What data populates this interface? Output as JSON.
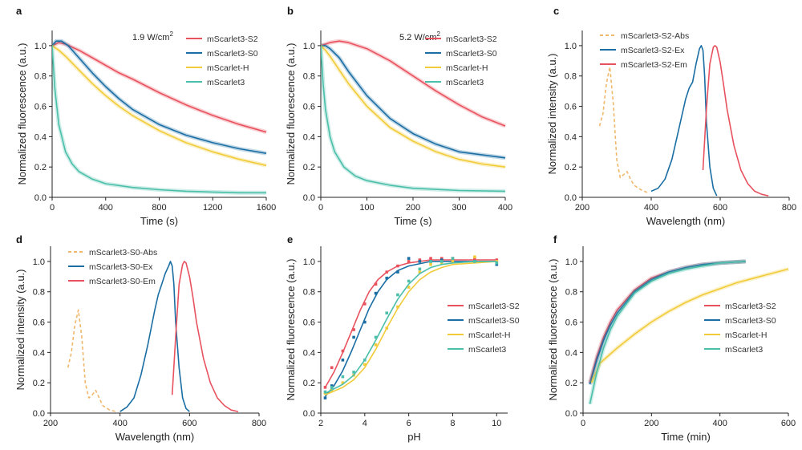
{
  "colors": {
    "s2": "#e8525f",
    "s0": "#1b6ea4",
    "h": "#f2cb3a",
    "m3": "#4bbfaa",
    "abs": "#f0b86c"
  },
  "chart_data": [
    {
      "panel": "a",
      "type": "line",
      "annotation": "1.9 W/cm",
      "annotation_sup": "2",
      "xlabel": "Time (s)",
      "ylabel": "Normalized fluorescence (a.u.)",
      "xlim": [
        0,
        1600
      ],
      "ylim": [
        0,
        1.1
      ],
      "xticks": [
        "0",
        "400",
        "800",
        "1200",
        "1600"
      ],
      "yticks": [
        "0.0",
        "0.2",
        "0.4",
        "0.6",
        "0.8",
        "1.0"
      ],
      "legend_position": "top-right",
      "series": [
        {
          "name": "mScarlet3-S2",
          "color_key": "s2",
          "x": [
            0,
            50,
            100,
            200,
            300,
            400,
            500,
            600,
            800,
            1000,
            1200,
            1400,
            1600
          ],
          "y": [
            1.0,
            1.02,
            1.01,
            0.97,
            0.92,
            0.87,
            0.82,
            0.78,
            0.69,
            0.61,
            0.54,
            0.48,
            0.43
          ]
        },
        {
          "name": "mScarlet3-S0",
          "color_key": "s0",
          "x": [
            0,
            30,
            70,
            120,
            200,
            300,
            400,
            500,
            600,
            800,
            1000,
            1200,
            1400,
            1600
          ],
          "y": [
            1.0,
            1.03,
            1.03,
            1.0,
            0.92,
            0.82,
            0.73,
            0.65,
            0.58,
            0.48,
            0.41,
            0.36,
            0.32,
            0.29
          ]
        },
        {
          "name": "mScarlet-H",
          "color_key": "h",
          "x": [
            0,
            50,
            100,
            200,
            300,
            400,
            500,
            600,
            800,
            1000,
            1200,
            1400,
            1600
          ],
          "y": [
            1.0,
            0.97,
            0.93,
            0.84,
            0.75,
            0.67,
            0.6,
            0.54,
            0.44,
            0.36,
            0.3,
            0.25,
            0.21
          ]
        },
        {
          "name": "mScarlet3",
          "color_key": "m3",
          "x": [
            0,
            20,
            50,
            100,
            150,
            200,
            300,
            400,
            600,
            800,
            1000,
            1200,
            1400,
            1600
          ],
          "y": [
            1.0,
            0.72,
            0.48,
            0.3,
            0.22,
            0.17,
            0.12,
            0.09,
            0.065,
            0.05,
            0.04,
            0.035,
            0.03,
            0.03
          ]
        }
      ]
    },
    {
      "panel": "b",
      "type": "line",
      "annotation": "5.2 W/cm",
      "annotation_sup": "2",
      "xlabel": "Time (s)",
      "ylabel": "Normalized fluorescence (a.u.)",
      "xlim": [
        0,
        400
      ],
      "ylim": [
        0,
        1.1
      ],
      "xticks": [
        "0",
        "100",
        "200",
        "300",
        "400"
      ],
      "yticks": [
        "0.0",
        "0.2",
        "0.4",
        "0.6",
        "0.8",
        "1.0"
      ],
      "legend_position": "top-right",
      "series": [
        {
          "name": "mScarlet3-S2",
          "color_key": "s2",
          "x": [
            0,
            20,
            40,
            60,
            100,
            150,
            200,
            250,
            300,
            350,
            400
          ],
          "y": [
            1.0,
            1.02,
            1.03,
            1.02,
            0.98,
            0.9,
            0.8,
            0.7,
            0.61,
            0.53,
            0.47
          ]
        },
        {
          "name": "mScarlet3-S0",
          "color_key": "s0",
          "x": [
            0,
            10,
            20,
            40,
            60,
            100,
            150,
            200,
            250,
            300,
            350,
            400
          ],
          "y": [
            1.0,
            1.0,
            0.98,
            0.92,
            0.83,
            0.67,
            0.52,
            0.42,
            0.35,
            0.3,
            0.28,
            0.26
          ]
        },
        {
          "name": "mScarlet-H",
          "color_key": "h",
          "x": [
            0,
            10,
            20,
            40,
            60,
            100,
            150,
            200,
            250,
            300,
            350,
            400
          ],
          "y": [
            1.0,
            0.97,
            0.93,
            0.84,
            0.75,
            0.6,
            0.46,
            0.37,
            0.3,
            0.25,
            0.22,
            0.2
          ]
        },
        {
          "name": "mScarlet3",
          "color_key": "m3",
          "x": [
            0,
            5,
            10,
            20,
            30,
            50,
            75,
            100,
            150,
            200,
            300,
            400
          ],
          "y": [
            1.0,
            0.75,
            0.58,
            0.4,
            0.3,
            0.2,
            0.14,
            0.11,
            0.08,
            0.06,
            0.045,
            0.04
          ]
        }
      ]
    },
    {
      "panel": "c",
      "type": "line",
      "xlabel": "Wavelength (nm)",
      "ylabel": "Normalized intensity (a.u.)",
      "xlim": [
        200,
        800
      ],
      "ylim": [
        0,
        1.1
      ],
      "xticks": [
        "200",
        "400",
        "600",
        "800"
      ],
      "yticks": [
        "0.0",
        "0.2",
        "0.4",
        "0.6",
        "0.8",
        "1.0"
      ],
      "legend_position": "top-left",
      "series": [
        {
          "name": "mScarlet3-S2-Abs",
          "color_key": "abs",
          "dashed": true,
          "x": [
            250,
            260,
            270,
            280,
            290,
            300,
            310,
            320,
            330,
            340,
            350,
            370,
            390
          ],
          "y": [
            0.47,
            0.55,
            0.75,
            0.86,
            0.62,
            0.25,
            0.13,
            0.15,
            0.17,
            0.12,
            0.08,
            0.05,
            0.03
          ]
        },
        {
          "name": "mScarlet3-S2-Ex",
          "color_key": "s0",
          "x": [
            400,
            420,
            440,
            460,
            480,
            500,
            510,
            520,
            530,
            540,
            545,
            550,
            555,
            560,
            570,
            580,
            590
          ],
          "y": [
            0.04,
            0.06,
            0.12,
            0.25,
            0.45,
            0.65,
            0.72,
            0.76,
            0.88,
            0.98,
            1.0,
            0.97,
            0.8,
            0.5,
            0.2,
            0.06,
            0.01
          ]
        },
        {
          "name": "mScarlet3-S2-Em",
          "color_key": "s2",
          "x": [
            550,
            560,
            570,
            580,
            585,
            590,
            600,
            610,
            620,
            640,
            660,
            680,
            700,
            720,
            740
          ],
          "y": [
            0.18,
            0.58,
            0.88,
            0.99,
            1.0,
            0.99,
            0.89,
            0.74,
            0.58,
            0.34,
            0.18,
            0.09,
            0.04,
            0.02,
            0.01
          ]
        }
      ]
    },
    {
      "panel": "d",
      "type": "line",
      "xlabel": "Wavelength (nm)",
      "ylabel": "Normalized intensity (a.u.)",
      "xlim": [
        200,
        800
      ],
      "ylim": [
        0,
        1.1
      ],
      "xticks": [
        "200",
        "400",
        "600",
        "800"
      ],
      "yticks": [
        "0.0",
        "0.2",
        "0.4",
        "0.6",
        "0.8",
        "1.0"
      ],
      "legend_position": "top-left",
      "series": [
        {
          "name": "mScarlet3-S0-Abs",
          "color_key": "abs",
          "dashed": true,
          "x": [
            250,
            260,
            270,
            280,
            290,
            300,
            310,
            320,
            330,
            340,
            350,
            370,
            390
          ],
          "y": [
            0.3,
            0.4,
            0.58,
            0.68,
            0.5,
            0.2,
            0.1,
            0.12,
            0.15,
            0.1,
            0.05,
            0.02,
            0.01
          ]
        },
        {
          "name": "mScarlet3-S0-Ex",
          "color_key": "s0",
          "x": [
            400,
            420,
            440,
            460,
            480,
            500,
            510,
            520,
            530,
            540,
            545,
            550,
            555,
            560,
            570,
            580,
            590,
            600
          ],
          "y": [
            0.01,
            0.04,
            0.1,
            0.25,
            0.45,
            0.68,
            0.78,
            0.85,
            0.92,
            0.97,
            1.0,
            0.97,
            0.85,
            0.6,
            0.3,
            0.1,
            0.03,
            0.01
          ]
        },
        {
          "name": "mScarlet3-S0-Em",
          "color_key": "s2",
          "x": [
            550,
            560,
            570,
            580,
            585,
            590,
            600,
            610,
            620,
            640,
            660,
            680,
            700,
            720,
            740
          ],
          "y": [
            0.12,
            0.5,
            0.85,
            0.98,
            1.0,
            0.99,
            0.9,
            0.76,
            0.6,
            0.36,
            0.2,
            0.1,
            0.05,
            0.02,
            0.01
          ]
        }
      ]
    },
    {
      "panel": "e",
      "type": "scatter",
      "xlabel": "pH",
      "ylabel": "Normalized fluorescence (a.u.)",
      "xlim": [
        2,
        10.5
      ],
      "ylim": [
        0,
        1.1
      ],
      "xticks": [
        "2",
        "4",
        "6",
        "8",
        "10"
      ],
      "yticks": [
        "0.0",
        "0.2",
        "0.4",
        "0.6",
        "0.8",
        "1.0"
      ],
      "legend_position": "center-right",
      "series": [
        {
          "name": "mScarlet3-S2",
          "color_key": "s2",
          "pts_x": [
            2.2,
            2.5,
            3,
            3.5,
            4,
            4.5,
            5,
            5.5,
            6,
            6.5,
            7,
            7.5,
            8,
            9,
            10
          ],
          "pts_y": [
            0.17,
            0.3,
            0.41,
            0.55,
            0.72,
            0.85,
            0.93,
            0.97,
            1.0,
            1.01,
            1.02,
            1.02,
            1.02,
            1.02,
            1.01
          ],
          "fit_x": [
            2.2,
            2.6,
            3.0,
            3.4,
            3.8,
            4.2,
            4.6,
            5.0,
            5.5,
            6.0,
            7.0,
            8.0,
            9.0,
            10.0
          ],
          "fit_y": [
            0.17,
            0.27,
            0.4,
            0.54,
            0.68,
            0.8,
            0.88,
            0.93,
            0.97,
            0.99,
            1.01,
            1.01,
            1.01,
            1.01
          ]
        },
        {
          "name": "mScarlet3-S0",
          "color_key": "s0",
          "pts_x": [
            2.2,
            2.5,
            3,
            3.5,
            4,
            4.5,
            5,
            5.5,
            6,
            6.5,
            7,
            7.5,
            8,
            9,
            10
          ],
          "pts_y": [
            0.1,
            0.18,
            0.35,
            0.5,
            0.6,
            0.79,
            0.89,
            0.93,
            1.02,
            1.0,
            1.0,
            1.01,
            1.0,
            1.0,
            0.98
          ],
          "fit_x": [
            2.2,
            2.6,
            3.0,
            3.4,
            3.8,
            4.2,
            4.6,
            5.0,
            5.5,
            6.0,
            7.0,
            8.0,
            9.0,
            10.0
          ],
          "fit_y": [
            0.11,
            0.18,
            0.28,
            0.41,
            0.55,
            0.69,
            0.8,
            0.88,
            0.94,
            0.97,
            1.0,
            1.0,
            1.0,
            1.0
          ]
        },
        {
          "name": "mScarlet-H",
          "color_key": "h",
          "pts_x": [
            2.2,
            2.5,
            3,
            3.5,
            4,
            4.5,
            5,
            5.5,
            6,
            6.5,
            7,
            7.5,
            8,
            9,
            10
          ],
          "pts_y": [
            0.13,
            0.15,
            0.2,
            0.25,
            0.32,
            0.45,
            0.56,
            0.7,
            0.83,
            0.93,
            0.98,
            0.99,
            1.0,
            1.03,
            1.0
          ],
          "fit_x": [
            2.2,
            3.0,
            3.5,
            4.0,
            4.5,
            5.0,
            5.5,
            6.0,
            6.5,
            7.0,
            7.5,
            8.0,
            9.0,
            10.0
          ],
          "fit_y": [
            0.12,
            0.17,
            0.22,
            0.3,
            0.42,
            0.56,
            0.69,
            0.8,
            0.88,
            0.93,
            0.96,
            0.98,
            0.99,
            1.0
          ]
        },
        {
          "name": "mScarlet3",
          "color_key": "m3",
          "pts_x": [
            2.2,
            2.5,
            3,
            3.5,
            4,
            4.5,
            5,
            5.5,
            6,
            6.5,
            7,
            7.5,
            8,
            9,
            10
          ],
          "pts_y": [
            0.14,
            0.17,
            0.24,
            0.27,
            0.35,
            0.5,
            0.66,
            0.78,
            0.87,
            0.95,
            1.0,
            1.0,
            1.02,
            1.0,
            0.99
          ],
          "fit_x": [
            2.2,
            3.0,
            3.5,
            4.0,
            4.5,
            5.0,
            5.5,
            6.0,
            6.5,
            7.0,
            7.5,
            8.0,
            9.0,
            10.0
          ],
          "fit_y": [
            0.13,
            0.19,
            0.25,
            0.35,
            0.48,
            0.62,
            0.75,
            0.85,
            0.92,
            0.96,
            0.98,
            0.99,
            1.0,
            1.0
          ]
        }
      ]
    },
    {
      "panel": "f",
      "type": "line",
      "xlabel": "Time (min)",
      "ylabel": "Normalized fluorescence (a.u.)",
      "xlim": [
        0,
        600
      ],
      "ylim": [
        0,
        1.1
      ],
      "xticks": [
        "0",
        "200",
        "400",
        "600"
      ],
      "yticks": [
        "0.0",
        "0.2",
        "0.4",
        "0.6",
        "0.8",
        "1.0"
      ],
      "legend_position": "center-right",
      "series": [
        {
          "name": "mScarlet3-S2",
          "color_key": "s2",
          "x": [
            20,
            40,
            60,
            80,
            100,
            150,
            200,
            250,
            300,
            350,
            400,
            475
          ],
          "y": [
            0.2,
            0.37,
            0.5,
            0.6,
            0.68,
            0.81,
            0.89,
            0.93,
            0.96,
            0.98,
            0.99,
            1.0
          ]
        },
        {
          "name": "mScarlet3-S0",
          "color_key": "s0",
          "x": [
            20,
            40,
            60,
            80,
            100,
            150,
            200,
            250,
            300,
            350,
            400,
            475
          ],
          "y": [
            0.19,
            0.35,
            0.48,
            0.58,
            0.66,
            0.8,
            0.88,
            0.93,
            0.96,
            0.98,
            0.99,
            1.0
          ]
        },
        {
          "name": "mScarlet-H",
          "color_key": "h",
          "x": [
            25,
            50,
            75,
            100,
            150,
            200,
            250,
            300,
            350,
            400,
            450,
            500,
            550,
            600
          ],
          "y": [
            0.2,
            0.33,
            0.38,
            0.43,
            0.52,
            0.6,
            0.67,
            0.73,
            0.78,
            0.82,
            0.86,
            0.89,
            0.92,
            0.95
          ]
        },
        {
          "name": "mScarlet3",
          "color_key": "m3",
          "x": [
            20,
            40,
            60,
            80,
            100,
            150,
            200,
            250,
            300,
            350,
            400,
            475
          ],
          "y": [
            0.06,
            0.27,
            0.43,
            0.55,
            0.64,
            0.79,
            0.87,
            0.92,
            0.95,
            0.97,
            0.99,
            1.0
          ]
        }
      ]
    }
  ]
}
